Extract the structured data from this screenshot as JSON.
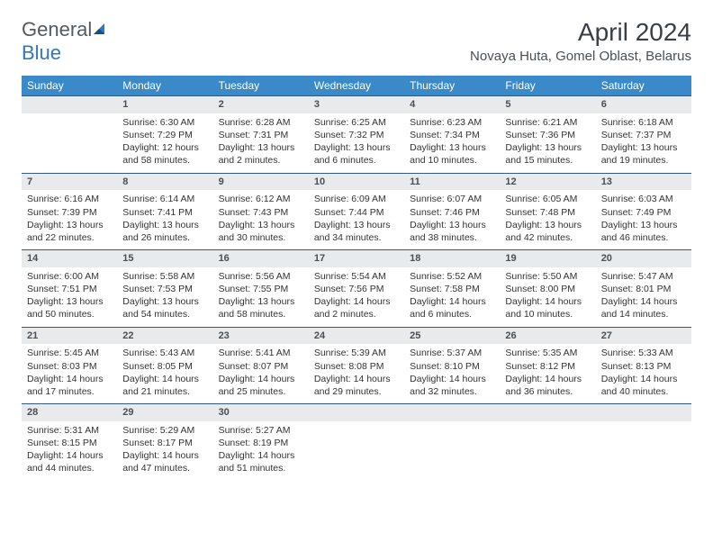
{
  "logo": {
    "word1": "General",
    "word2": "Blue"
  },
  "title": "April 2024",
  "location": "Novaya Huta, Gomel Oblast, Belarus",
  "colors": {
    "header_bg": "#3a89c9",
    "header_text": "#ffffff",
    "daynum_bg": "#e8eaec",
    "daynum_border": "#2f5b80",
    "body_text": "#333333",
    "logo_gray": "#555a60",
    "logo_blue": "#2f78b9"
  },
  "typography": {
    "title_size_pt": 21,
    "location_size_pt": 11,
    "dayhead_size_pt": 9,
    "cell_size_pt": 8
  },
  "dayHeaders": [
    "Sunday",
    "Monday",
    "Tuesday",
    "Wednesday",
    "Thursday",
    "Friday",
    "Saturday"
  ],
  "weeks": [
    {
      "nums": [
        "",
        "1",
        "2",
        "3",
        "4",
        "5",
        "6"
      ],
      "cells": [
        {
          "sunrise": "",
          "sunset": "",
          "daylight": ""
        },
        {
          "sunrise": "Sunrise: 6:30 AM",
          "sunset": "Sunset: 7:29 PM",
          "daylight": "Daylight: 12 hours and 58 minutes."
        },
        {
          "sunrise": "Sunrise: 6:28 AM",
          "sunset": "Sunset: 7:31 PM",
          "daylight": "Daylight: 13 hours and 2 minutes."
        },
        {
          "sunrise": "Sunrise: 6:25 AM",
          "sunset": "Sunset: 7:32 PM",
          "daylight": "Daylight: 13 hours and 6 minutes."
        },
        {
          "sunrise": "Sunrise: 6:23 AM",
          "sunset": "Sunset: 7:34 PM",
          "daylight": "Daylight: 13 hours and 10 minutes."
        },
        {
          "sunrise": "Sunrise: 6:21 AM",
          "sunset": "Sunset: 7:36 PM",
          "daylight": "Daylight: 13 hours and 15 minutes."
        },
        {
          "sunrise": "Sunrise: 6:18 AM",
          "sunset": "Sunset: 7:37 PM",
          "daylight": "Daylight: 13 hours and 19 minutes."
        }
      ]
    },
    {
      "nums": [
        "7",
        "8",
        "9",
        "10",
        "11",
        "12",
        "13"
      ],
      "cells": [
        {
          "sunrise": "Sunrise: 6:16 AM",
          "sunset": "Sunset: 7:39 PM",
          "daylight": "Daylight: 13 hours and 22 minutes."
        },
        {
          "sunrise": "Sunrise: 6:14 AM",
          "sunset": "Sunset: 7:41 PM",
          "daylight": "Daylight: 13 hours and 26 minutes."
        },
        {
          "sunrise": "Sunrise: 6:12 AM",
          "sunset": "Sunset: 7:43 PM",
          "daylight": "Daylight: 13 hours and 30 minutes."
        },
        {
          "sunrise": "Sunrise: 6:09 AM",
          "sunset": "Sunset: 7:44 PM",
          "daylight": "Daylight: 13 hours and 34 minutes."
        },
        {
          "sunrise": "Sunrise: 6:07 AM",
          "sunset": "Sunset: 7:46 PM",
          "daylight": "Daylight: 13 hours and 38 minutes."
        },
        {
          "sunrise": "Sunrise: 6:05 AM",
          "sunset": "Sunset: 7:48 PM",
          "daylight": "Daylight: 13 hours and 42 minutes."
        },
        {
          "sunrise": "Sunrise: 6:03 AM",
          "sunset": "Sunset: 7:49 PM",
          "daylight": "Daylight: 13 hours and 46 minutes."
        }
      ]
    },
    {
      "nums": [
        "14",
        "15",
        "16",
        "17",
        "18",
        "19",
        "20"
      ],
      "cells": [
        {
          "sunrise": "Sunrise: 6:00 AM",
          "sunset": "Sunset: 7:51 PM",
          "daylight": "Daylight: 13 hours and 50 minutes."
        },
        {
          "sunrise": "Sunrise: 5:58 AM",
          "sunset": "Sunset: 7:53 PM",
          "daylight": "Daylight: 13 hours and 54 minutes."
        },
        {
          "sunrise": "Sunrise: 5:56 AM",
          "sunset": "Sunset: 7:55 PM",
          "daylight": "Daylight: 13 hours and 58 minutes."
        },
        {
          "sunrise": "Sunrise: 5:54 AM",
          "sunset": "Sunset: 7:56 PM",
          "daylight": "Daylight: 14 hours and 2 minutes."
        },
        {
          "sunrise": "Sunrise: 5:52 AM",
          "sunset": "Sunset: 7:58 PM",
          "daylight": "Daylight: 14 hours and 6 minutes."
        },
        {
          "sunrise": "Sunrise: 5:50 AM",
          "sunset": "Sunset: 8:00 PM",
          "daylight": "Daylight: 14 hours and 10 minutes."
        },
        {
          "sunrise": "Sunrise: 5:47 AM",
          "sunset": "Sunset: 8:01 PM",
          "daylight": "Daylight: 14 hours and 14 minutes."
        }
      ]
    },
    {
      "nums": [
        "21",
        "22",
        "23",
        "24",
        "25",
        "26",
        "27"
      ],
      "cells": [
        {
          "sunrise": "Sunrise: 5:45 AM",
          "sunset": "Sunset: 8:03 PM",
          "daylight": "Daylight: 14 hours and 17 minutes."
        },
        {
          "sunrise": "Sunrise: 5:43 AM",
          "sunset": "Sunset: 8:05 PM",
          "daylight": "Daylight: 14 hours and 21 minutes."
        },
        {
          "sunrise": "Sunrise: 5:41 AM",
          "sunset": "Sunset: 8:07 PM",
          "daylight": "Daylight: 14 hours and 25 minutes."
        },
        {
          "sunrise": "Sunrise: 5:39 AM",
          "sunset": "Sunset: 8:08 PM",
          "daylight": "Daylight: 14 hours and 29 minutes."
        },
        {
          "sunrise": "Sunrise: 5:37 AM",
          "sunset": "Sunset: 8:10 PM",
          "daylight": "Daylight: 14 hours and 32 minutes."
        },
        {
          "sunrise": "Sunrise: 5:35 AM",
          "sunset": "Sunset: 8:12 PM",
          "daylight": "Daylight: 14 hours and 36 minutes."
        },
        {
          "sunrise": "Sunrise: 5:33 AM",
          "sunset": "Sunset: 8:13 PM",
          "daylight": "Daylight: 14 hours and 40 minutes."
        }
      ]
    },
    {
      "nums": [
        "28",
        "29",
        "30",
        "",
        "",
        "",
        ""
      ],
      "cells": [
        {
          "sunrise": "Sunrise: 5:31 AM",
          "sunset": "Sunset: 8:15 PM",
          "daylight": "Daylight: 14 hours and 44 minutes."
        },
        {
          "sunrise": "Sunrise: 5:29 AM",
          "sunset": "Sunset: 8:17 PM",
          "daylight": "Daylight: 14 hours and 47 minutes."
        },
        {
          "sunrise": "Sunrise: 5:27 AM",
          "sunset": "Sunset: 8:19 PM",
          "daylight": "Daylight: 14 hours and 51 minutes."
        },
        {
          "sunrise": "",
          "sunset": "",
          "daylight": ""
        },
        {
          "sunrise": "",
          "sunset": "",
          "daylight": ""
        },
        {
          "sunrise": "",
          "sunset": "",
          "daylight": ""
        },
        {
          "sunrise": "",
          "sunset": "",
          "daylight": ""
        }
      ]
    }
  ]
}
